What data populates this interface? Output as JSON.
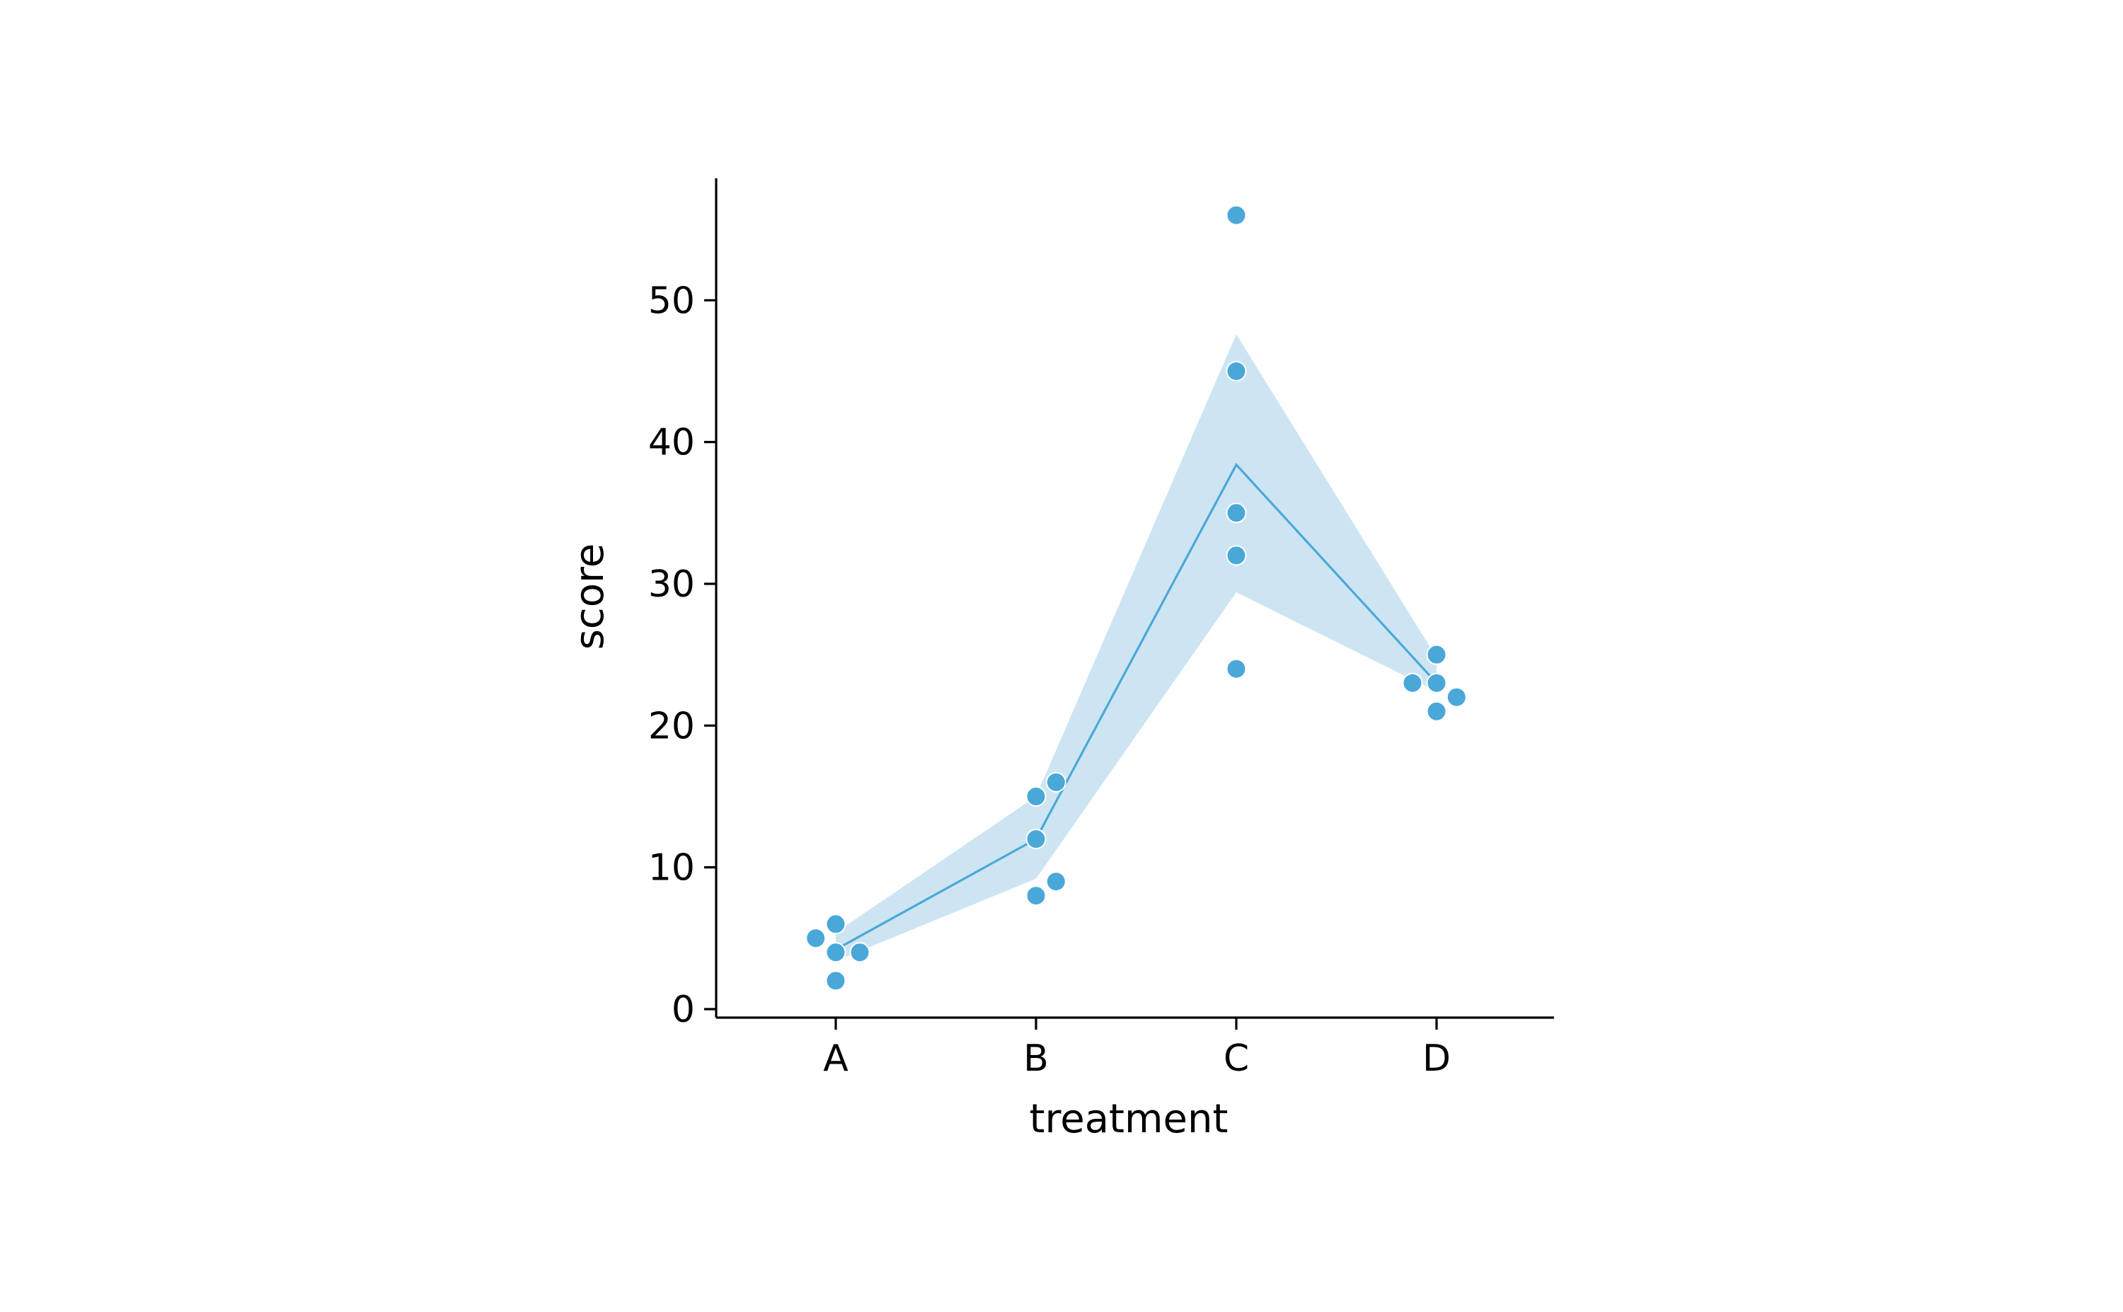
{
  "chart_data": {
    "type": "line",
    "xlabel": "treatment",
    "ylabel": "score",
    "categories": [
      "A",
      "B",
      "C",
      "D"
    ],
    "ylim": [
      -0.6,
      58.6
    ],
    "y_ticks": [
      0,
      10,
      20,
      30,
      40,
      50
    ],
    "y_tick_labels": [
      "0",
      "10",
      "20",
      "30",
      "40",
      "50"
    ],
    "grid": false,
    "legend": "none",
    "series": [
      {
        "type": "line",
        "x": [
          "A",
          "B",
          "C",
          "D"
        ],
        "y": [
          4.2,
          12.0,
          38.4,
          23.0
        ]
      },
      {
        "type": "band",
        "x": [
          "A",
          "B",
          "C",
          "D"
        ],
        "lower": [
          3.4,
          9.2,
          29.4,
          22.4
        ],
        "upper": [
          5.4,
          15.0,
          47.6,
          24.8
        ]
      },
      {
        "type": "scatter",
        "points": [
          {
            "x": "A",
            "y": 5,
            "jitter": -0.1
          },
          {
            "x": "A",
            "y": 6,
            "jitter": 0.0
          },
          {
            "x": "A",
            "y": 4,
            "jitter": 0.0
          },
          {
            "x": "A",
            "y": 4,
            "jitter": 0.12
          },
          {
            "x": "A",
            "y": 2,
            "jitter": 0.0
          },
          {
            "x": "B",
            "y": 16,
            "jitter": 0.1
          },
          {
            "x": "B",
            "y": 15,
            "jitter": 0.0
          },
          {
            "x": "B",
            "y": 12,
            "jitter": 0.0
          },
          {
            "x": "B",
            "y": 9,
            "jitter": 0.1
          },
          {
            "x": "B",
            "y": 8,
            "jitter": 0.0
          },
          {
            "x": "C",
            "y": 56,
            "jitter": 0.0
          },
          {
            "x": "C",
            "y": 45,
            "jitter": 0.0
          },
          {
            "x": "C",
            "y": 35,
            "jitter": 0.0
          },
          {
            "x": "C",
            "y": 32,
            "jitter": 0.0
          },
          {
            "x": "C",
            "y": 24,
            "jitter": 0.0
          },
          {
            "x": "D",
            "y": 25,
            "jitter": 0.0
          },
          {
            "x": "D",
            "y": 23,
            "jitter": -0.12
          },
          {
            "x": "D",
            "y": 23,
            "jitter": 0.0
          },
          {
            "x": "D",
            "y": 22,
            "jitter": 0.1
          },
          {
            "x": "D",
            "y": 21,
            "jitter": 0.0
          }
        ]
      }
    ],
    "colors": {
      "line": "#4aa8d8",
      "band": "#cde5f2",
      "points": "#4aa8d8",
      "axis": "#000000",
      "background": "#ffffff"
    }
  }
}
